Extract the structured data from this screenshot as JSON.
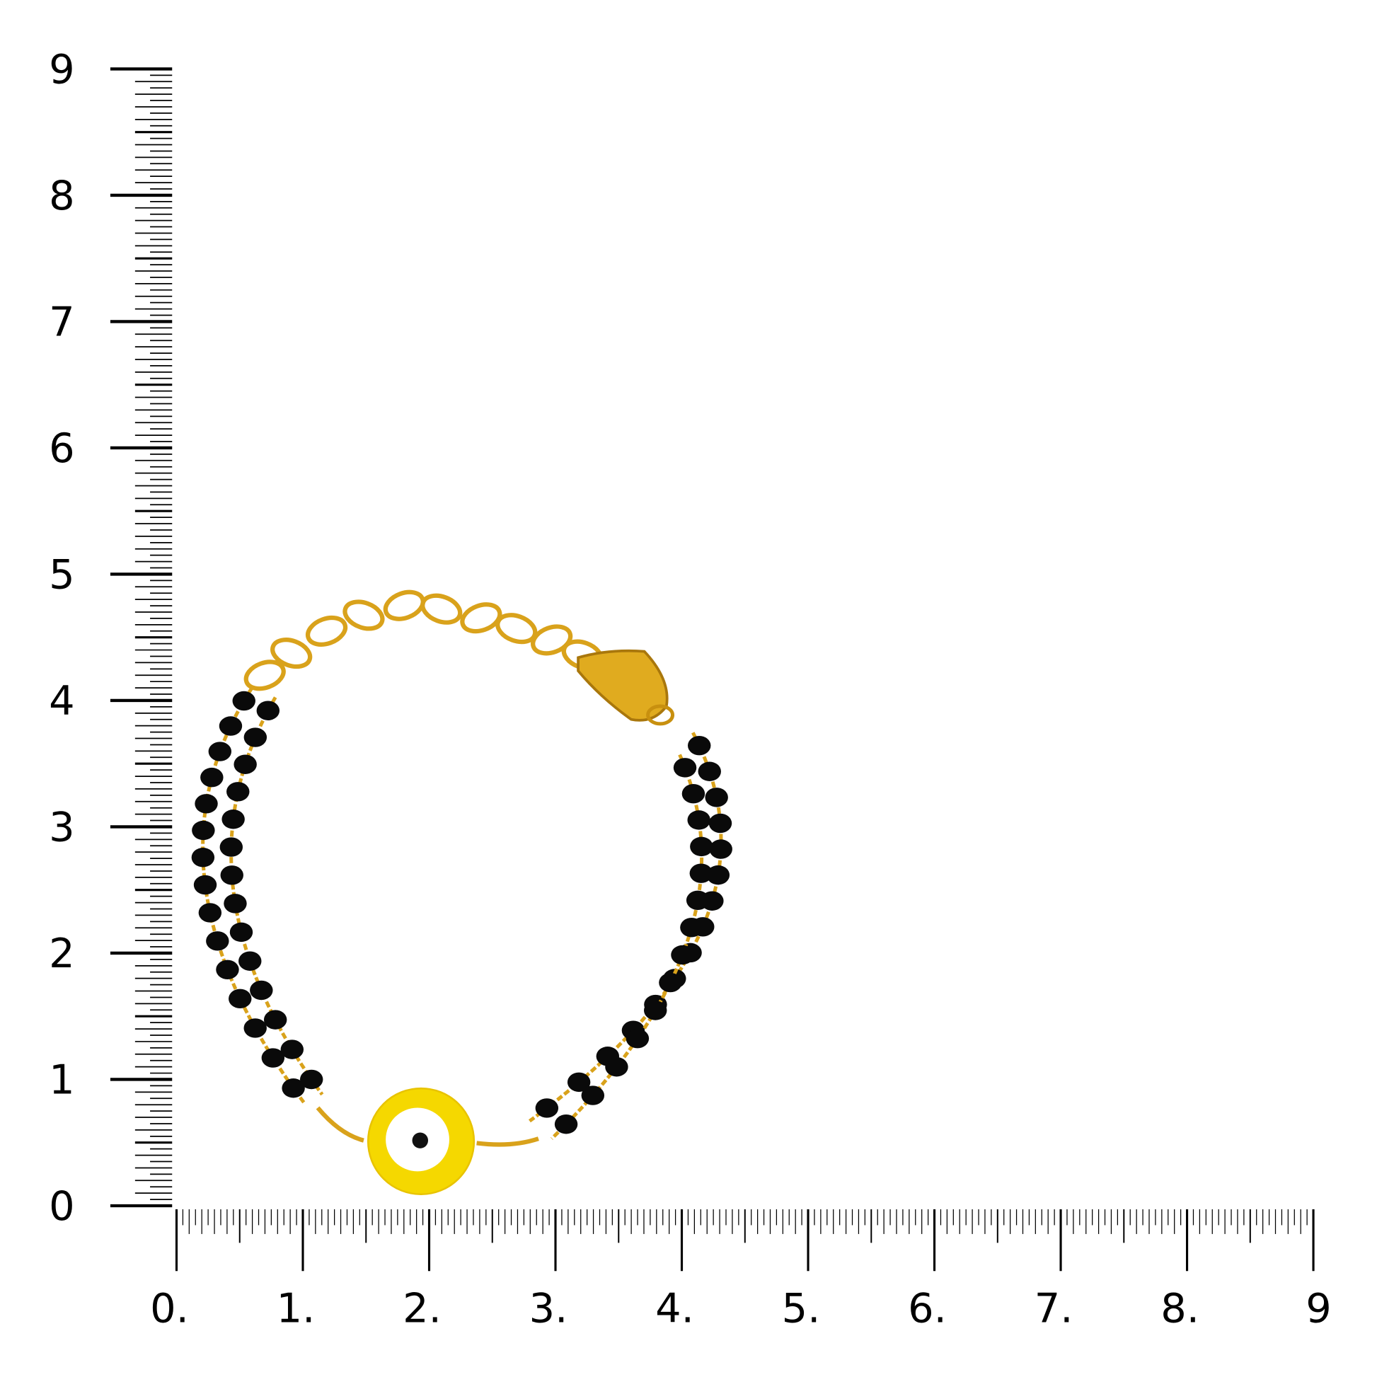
{
  "rulers": {
    "vertical_labels": [
      "0",
      "1",
      "2",
      "3",
      "4",
      "5",
      "6",
      "7",
      "8",
      "9"
    ],
    "horizontal_labels": [
      "0.",
      "1.",
      "2.",
      "3.",
      "4.",
      "5.",
      "6.",
      "7.",
      "8.",
      "9"
    ],
    "subdivisions_per_unit": 20
  },
  "product": {
    "name": "black bead bracelet with yellow evil eye charm",
    "colors": {
      "gold": "#d9a21b",
      "bead": "#0a0a0a",
      "eye_outer": "#f5d800",
      "eye_inner": "#ffffff",
      "pupil": "#111111"
    }
  }
}
